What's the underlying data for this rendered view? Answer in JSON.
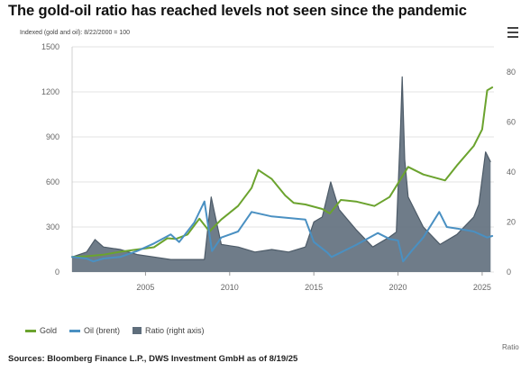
{
  "header": {
    "title": "The gold-oil ratio has reached levels not seen since the pandemic",
    "subtitle": "Indexed (gold and oil): 8/22/2000 = 100"
  },
  "footer": {
    "source": "Sources: Bloomberg Finance L.P., DWS Investment GmbH as of 8/19/25",
    "clipped_label": "Ratio"
  },
  "menu": {
    "icon": "hamburger-menu-icon"
  },
  "chart_data": {
    "type": "line",
    "title": "The gold-oil ratio has reached levels not seen since the pandemic",
    "subtitle": "Indexed (gold and oil): 8/22/2000 = 100",
    "xlabel": "",
    "ylabel": "",
    "x_range": [
      2000.64,
      2025.7
    ],
    "x_ticks": [
      2005,
      2010,
      2015,
      2020,
      2025
    ],
    "y_left": {
      "range": [
        0,
        1500
      ],
      "ticks": [
        0,
        300,
        600,
        900,
        1200,
        1500
      ]
    },
    "y_right": {
      "range": [
        0,
        90
      ],
      "ticks": [
        0,
        20,
        40,
        60,
        80
      ]
    },
    "grid": "horizontal",
    "legend_position": "bottom-left",
    "colors": {
      "gold": "#6ba32e",
      "oil": "#4a90c2",
      "ratio": "#5f6e7c"
    },
    "series": [
      {
        "name": "Gold",
        "axis": "left",
        "style": "line",
        "x": [
          2000.6,
          2001.5,
          2002.5,
          2003.5,
          2004.5,
          2005.5,
          2006.3,
          2006.8,
          2007.5,
          2008.2,
          2008.8,
          2009.5,
          2010.5,
          2011.3,
          2011.7,
          2012.5,
          2013.3,
          2013.8,
          2014.5,
          2015.5,
          2015.95,
          2016.6,
          2017.5,
          2018.6,
          2019.5,
          2020.6,
          2021.5,
          2022.8,
          2023.5,
          2024.5,
          2025.0,
          2025.3,
          2025.6
        ],
        "y": [
          100,
          105,
          115,
          135,
          150,
          165,
          225,
          220,
          250,
          355,
          270,
          350,
          440,
          560,
          680,
          620,
          510,
          460,
          450,
          420,
          390,
          480,
          470,
          440,
          500,
          700,
          650,
          610,
          710,
          840,
          950,
          1210,
          1230
        ]
      },
      {
        "name": "Oil (brent)",
        "axis": "left",
        "style": "line",
        "x": [
          2000.6,
          2001.5,
          2001.9,
          2002.5,
          2003.5,
          2004.5,
          2005.5,
          2006.5,
          2007.0,
          2007.9,
          2008.5,
          2008.95,
          2009.5,
          2010.5,
          2011.3,
          2012.5,
          2013.5,
          2014.5,
          2015.0,
          2015.8,
          2016.05,
          2017.5,
          2018.8,
          2019.5,
          2020.0,
          2020.3,
          2020.8,
          2021.5,
          2022.45,
          2022.9,
          2023.5,
          2024.5,
          2025.3,
          2025.6
        ],
        "y": [
          100,
          90,
          70,
          90,
          100,
          140,
          190,
          250,
          200,
          330,
          470,
          140,
          230,
          270,
          400,
          370,
          360,
          350,
          200,
          130,
          100,
          180,
          260,
          220,
          210,
          70,
          140,
          230,
          400,
          300,
          290,
          270,
          230,
          240
        ]
      },
      {
        "name": "Ratio (right axis)",
        "axis": "right",
        "style": "area",
        "x": [
          2000.6,
          2001.5,
          2002.0,
          2002.5,
          2003.5,
          2004.5,
          2005.5,
          2006.5,
          2007.5,
          2008.5,
          2008.9,
          2009.5,
          2010.5,
          2011.5,
          2012.5,
          2013.5,
          2014.5,
          2015.0,
          2015.5,
          2016.0,
          2016.5,
          2017.5,
          2018.5,
          2019.5,
          2019.9,
          2020.15,
          2020.25,
          2020.4,
          2020.6,
          2021.5,
          2022.5,
          2023.5,
          2024.5,
          2024.8,
          2025.2,
          2025.5
        ],
        "y": [
          6,
          8,
          13,
          10,
          9,
          7,
          6,
          5,
          5,
          5,
          30,
          11,
          10,
          8,
          9,
          8,
          10,
          20,
          22,
          36,
          25,
          17,
          10,
          14,
          16,
          58,
          78,
          45,
          30,
          18,
          11,
          15,
          22,
          27,
          48,
          44
        ]
      }
    ]
  },
  "legend": [
    {
      "label": "Gold",
      "color": "#6ba32e",
      "kind": "line"
    },
    {
      "label": "Oil (brent)",
      "color": "#4a90c2",
      "kind": "line"
    },
    {
      "label": "Ratio (right axis)",
      "color": "#5f6e7c",
      "kind": "area"
    }
  ]
}
